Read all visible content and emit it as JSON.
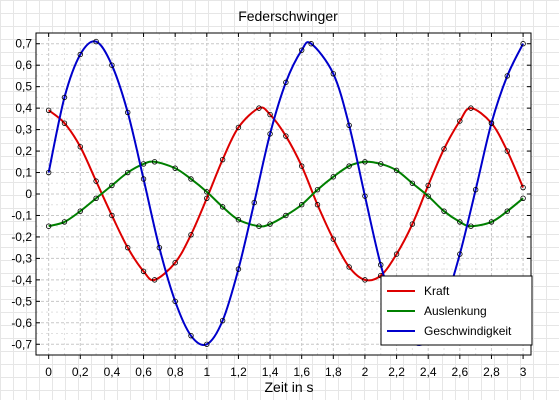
{
  "chart_data": {
    "type": "line",
    "title": "Federschwinger",
    "xlabel": "Zeit in s",
    "ylabel": "",
    "xlim": [
      -0.08,
      3.05
    ],
    "ylim": [
      -0.75,
      0.75
    ],
    "x_ticks": [
      0,
      0.2,
      0.4,
      0.6,
      0.8,
      1,
      1.2,
      1.4,
      1.6,
      1.8,
      2,
      2.2,
      2.4,
      2.6,
      2.8,
      3
    ],
    "x_tick_labels": [
      "0",
      "0,2",
      "0,4",
      "0,6",
      "0,8",
      "1",
      "1,2",
      "1,4",
      "1,6",
      "1,8",
      "2",
      "2,2",
      "2,4",
      "2,6",
      "2,8",
      "3"
    ],
    "y_ticks": [
      0.7,
      0.6,
      0.5,
      0.4,
      0.3,
      0.2,
      0.1,
      0,
      -0.1,
      -0.2,
      -0.3,
      -0.4,
      -0.5,
      -0.6,
      -0.7
    ],
    "y_tick_labels": [
      "0,7",
      "0,6",
      "0,5",
      "0,4",
      "0,3",
      "0,2",
      "0,1",
      "0",
      "-0,1",
      "-0,2",
      "-0,3",
      "-0,4",
      "-0,5",
      "-0,6",
      "-0,7"
    ],
    "grid": true,
    "legend_position": "bottom-right",
    "markers": "open circles (measured points) along each fitted curve",
    "series": [
      {
        "name": "Kraft",
        "color": "#dd0000",
        "x": [
          0,
          0.1,
          0.2,
          0.3,
          0.4,
          0.5,
          0.6,
          0.67,
          0.8,
          0.9,
          1.0,
          1.1,
          1.2,
          1.33,
          1.4,
          1.5,
          1.6,
          1.7,
          1.8,
          1.9,
          2.0,
          2.1,
          2.2,
          2.3,
          2.4,
          2.5,
          2.6,
          2.67,
          2.8,
          2.9,
          3.0
        ],
        "values": [
          0.39,
          0.33,
          0.22,
          0.06,
          -0.1,
          -0.25,
          -0.36,
          -0.4,
          -0.32,
          -0.19,
          -0.02,
          0.16,
          0.31,
          0.4,
          0.37,
          0.27,
          0.13,
          -0.05,
          -0.21,
          -0.34,
          -0.4,
          -0.38,
          -0.28,
          -0.14,
          0.04,
          0.21,
          0.34,
          0.4,
          0.33,
          0.2,
          0.03
        ]
      },
      {
        "name": "Auslenkung",
        "color": "#008000",
        "x": [
          0,
          0.1,
          0.2,
          0.3,
          0.4,
          0.5,
          0.6,
          0.67,
          0.8,
          0.9,
          1.0,
          1.1,
          1.2,
          1.33,
          1.4,
          1.5,
          1.6,
          1.7,
          1.8,
          1.9,
          2.0,
          2.1,
          2.2,
          2.3,
          2.4,
          2.5,
          2.6,
          2.67,
          2.8,
          2.9,
          3.0
        ],
        "values": [
          -0.15,
          -0.13,
          -0.08,
          -0.02,
          0.04,
          0.1,
          0.14,
          0.15,
          0.12,
          0.07,
          0.01,
          -0.06,
          -0.12,
          -0.15,
          -0.14,
          -0.1,
          -0.05,
          0.02,
          0.08,
          0.13,
          0.15,
          0.14,
          0.11,
          0.05,
          -0.01,
          -0.08,
          -0.13,
          -0.15,
          -0.13,
          -0.08,
          -0.02
        ]
      },
      {
        "name": "Geschwindigkeit",
        "color": "#0000cc",
        "x": [
          0,
          0.1,
          0.2,
          0.3,
          0.4,
          0.5,
          0.6,
          0.7,
          0.8,
          0.9,
          1.0,
          1.1,
          1.2,
          1.3,
          1.4,
          1.5,
          1.6,
          1.66,
          1.8,
          1.9,
          2.0,
          2.1,
          2.2,
          2.3,
          2.4,
          2.5,
          2.6,
          2.7,
          2.8,
          2.9,
          3.0
        ],
        "values": [
          0.1,
          0.45,
          0.65,
          0.71,
          0.6,
          0.38,
          0.07,
          -0.25,
          -0.5,
          -0.66,
          -0.7,
          -0.59,
          -0.35,
          -0.04,
          0.28,
          0.52,
          0.67,
          0.7,
          0.56,
          0.32,
          -0.01,
          -0.33,
          -0.56,
          -0.69,
          -0.68,
          -0.52,
          -0.28,
          0.02,
          0.33,
          0.55,
          0.7
        ]
      }
    ]
  }
}
